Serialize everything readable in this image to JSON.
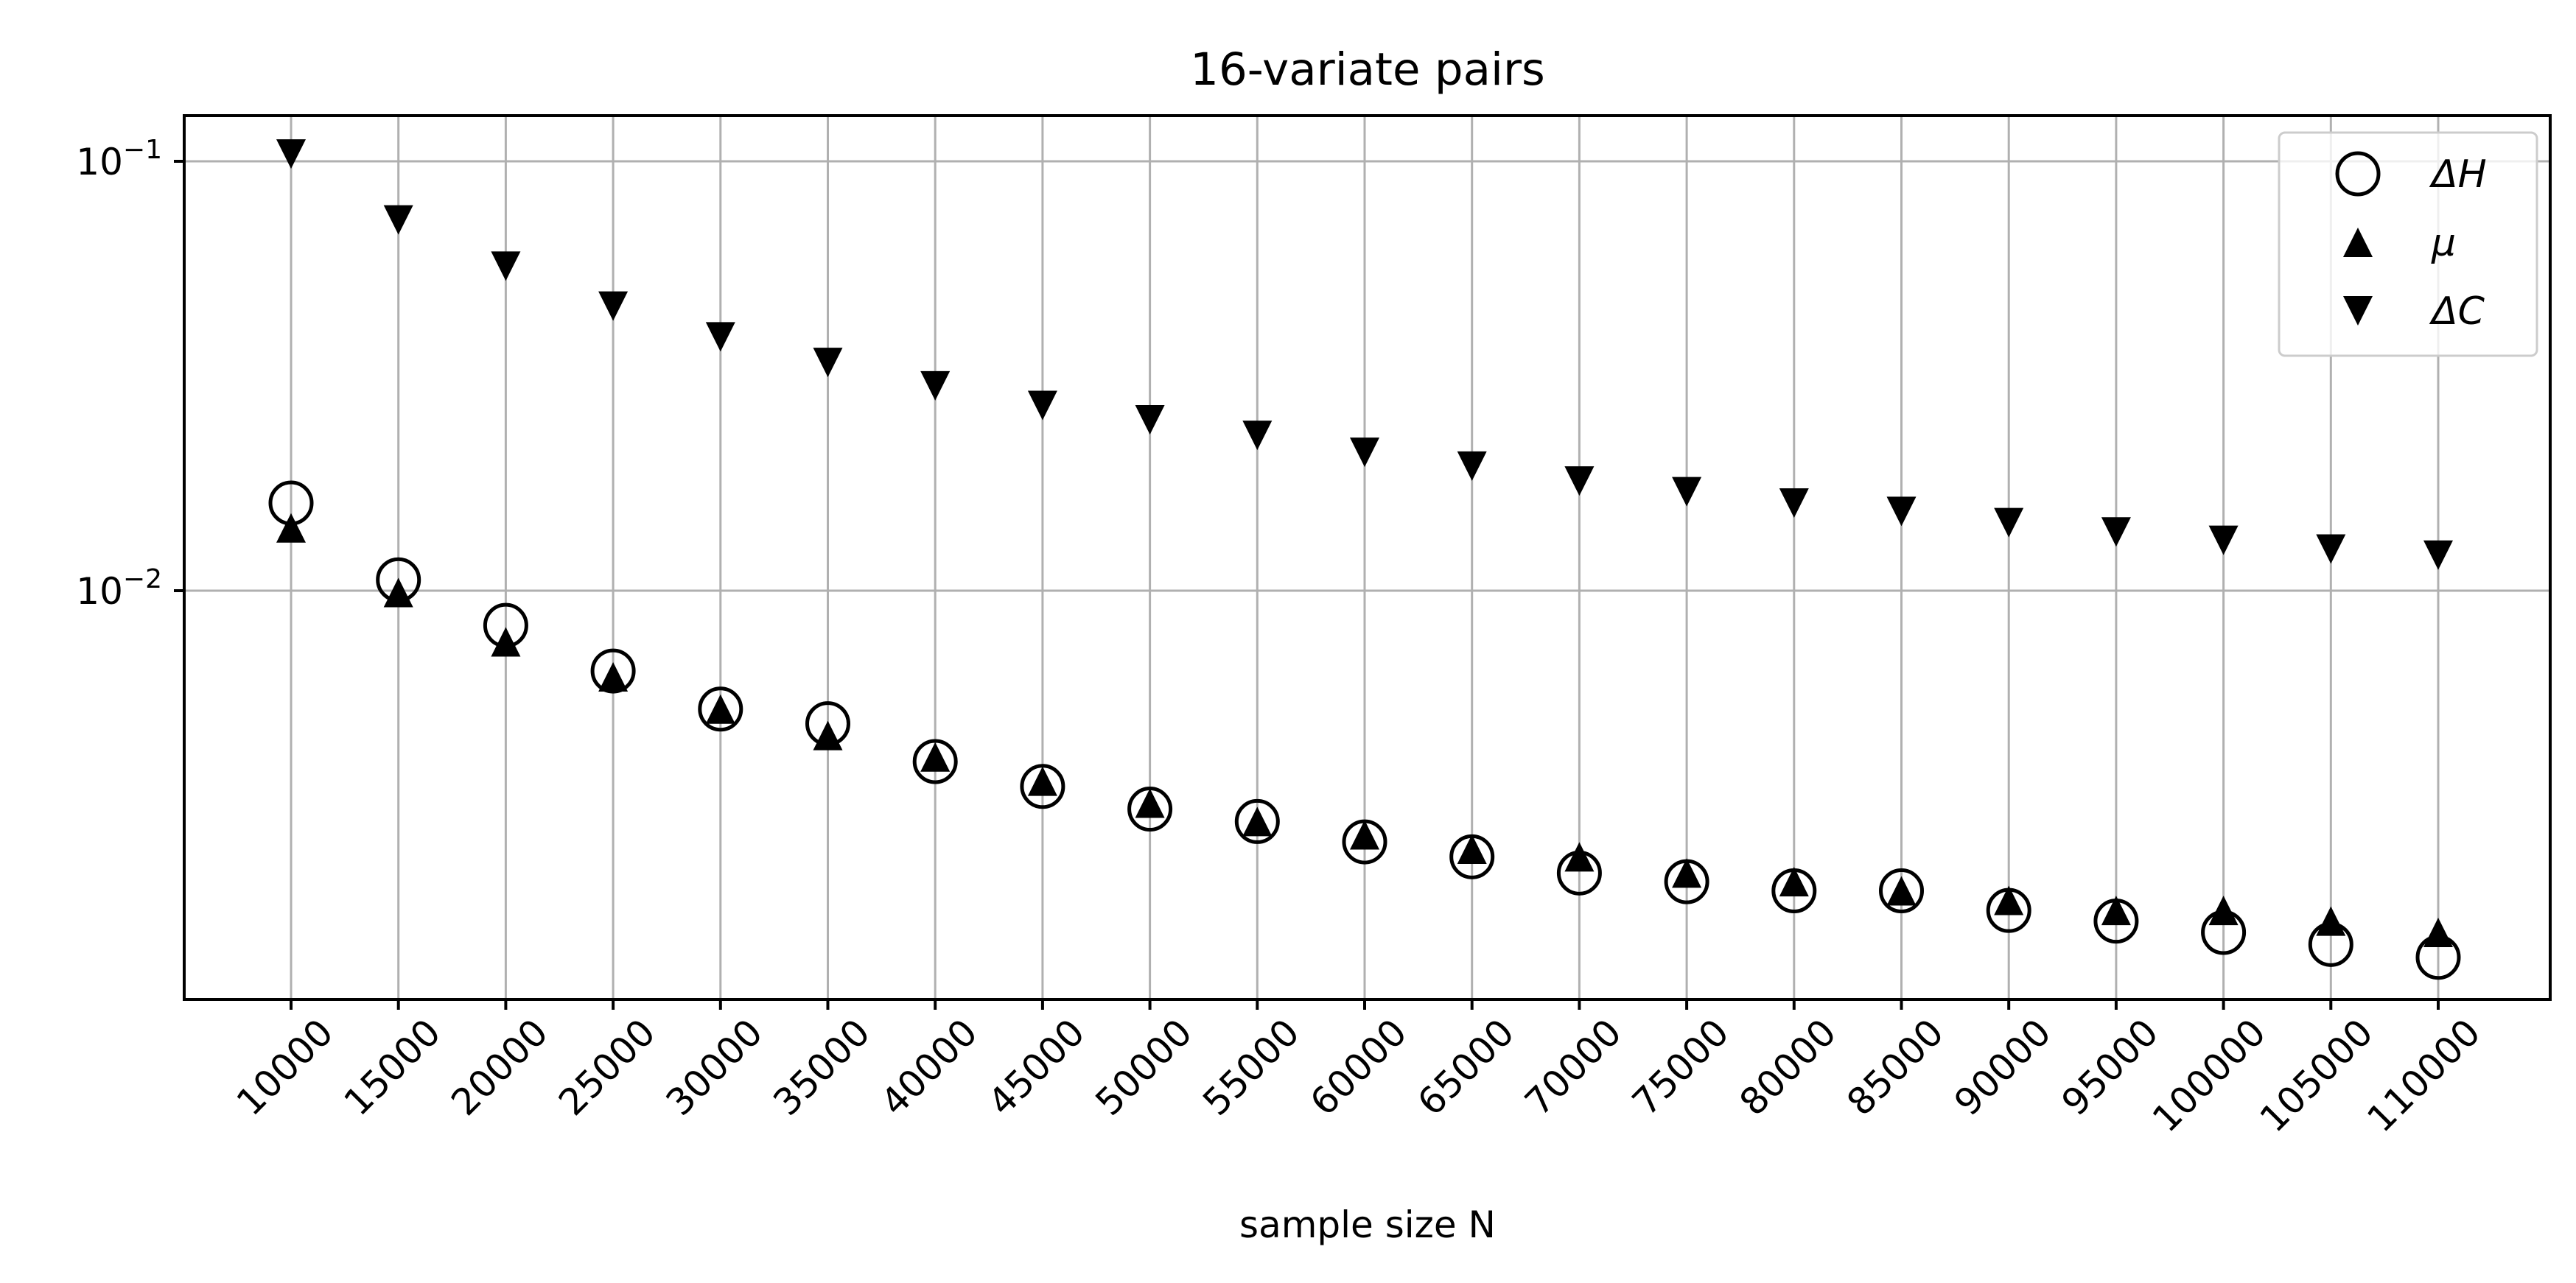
{
  "chart_data": {
    "type": "scatter",
    "title": "16-variate pairs",
    "xlabel": "sample size N",
    "ylabel": "",
    "yscale": "log",
    "ylim": [
      0.00135,
      0.13
    ],
    "grid": true,
    "legend_position": "top-right",
    "categories": [
      "10000",
      "15000",
      "20000",
      "25000",
      "30000",
      "35000",
      "40000",
      "45000",
      "50000",
      "55000",
      "60000",
      "65000",
      "70000",
      "75000",
      "80000",
      "85000",
      "90000",
      "95000",
      "100000",
      "105000",
      "110000"
    ],
    "yticks": [
      {
        "value": 0.1,
        "base": "10",
        "exp": "−1"
      },
      {
        "value": 0.01,
        "base": "10",
        "exp": "−2"
      }
    ],
    "series": [
      {
        "name": "ΔH",
        "marker": "open-circle",
        "values": [
          0.016,
          0.0106,
          0.0083,
          0.0065,
          0.0053,
          0.0049,
          0.004,
          0.0035,
          0.0031,
          0.0029,
          0.0026,
          0.0024,
          0.0022,
          0.0021,
          0.002,
          0.002,
          0.0018,
          0.0017,
          0.0016,
          0.0015,
          0.0014
        ]
      },
      {
        "name": "μ",
        "marker": "triangle-up",
        "values": [
          0.014,
          0.0099,
          0.0076,
          0.0063,
          0.0053,
          0.0046,
          0.0041,
          0.0036,
          0.0032,
          0.0029,
          0.0027,
          0.0025,
          0.0024,
          0.0022,
          0.0021,
          0.002,
          0.0019,
          0.0018,
          0.0018,
          0.0017,
          0.0016
        ]
      },
      {
        "name": "ΔC",
        "marker": "triangle-down",
        "values": [
          0.104,
          0.073,
          0.057,
          0.046,
          0.039,
          0.034,
          0.03,
          0.027,
          0.025,
          0.023,
          0.021,
          0.0195,
          0.018,
          0.017,
          0.016,
          0.0153,
          0.0144,
          0.0137,
          0.0131,
          0.0125,
          0.0121
        ]
      }
    ]
  }
}
